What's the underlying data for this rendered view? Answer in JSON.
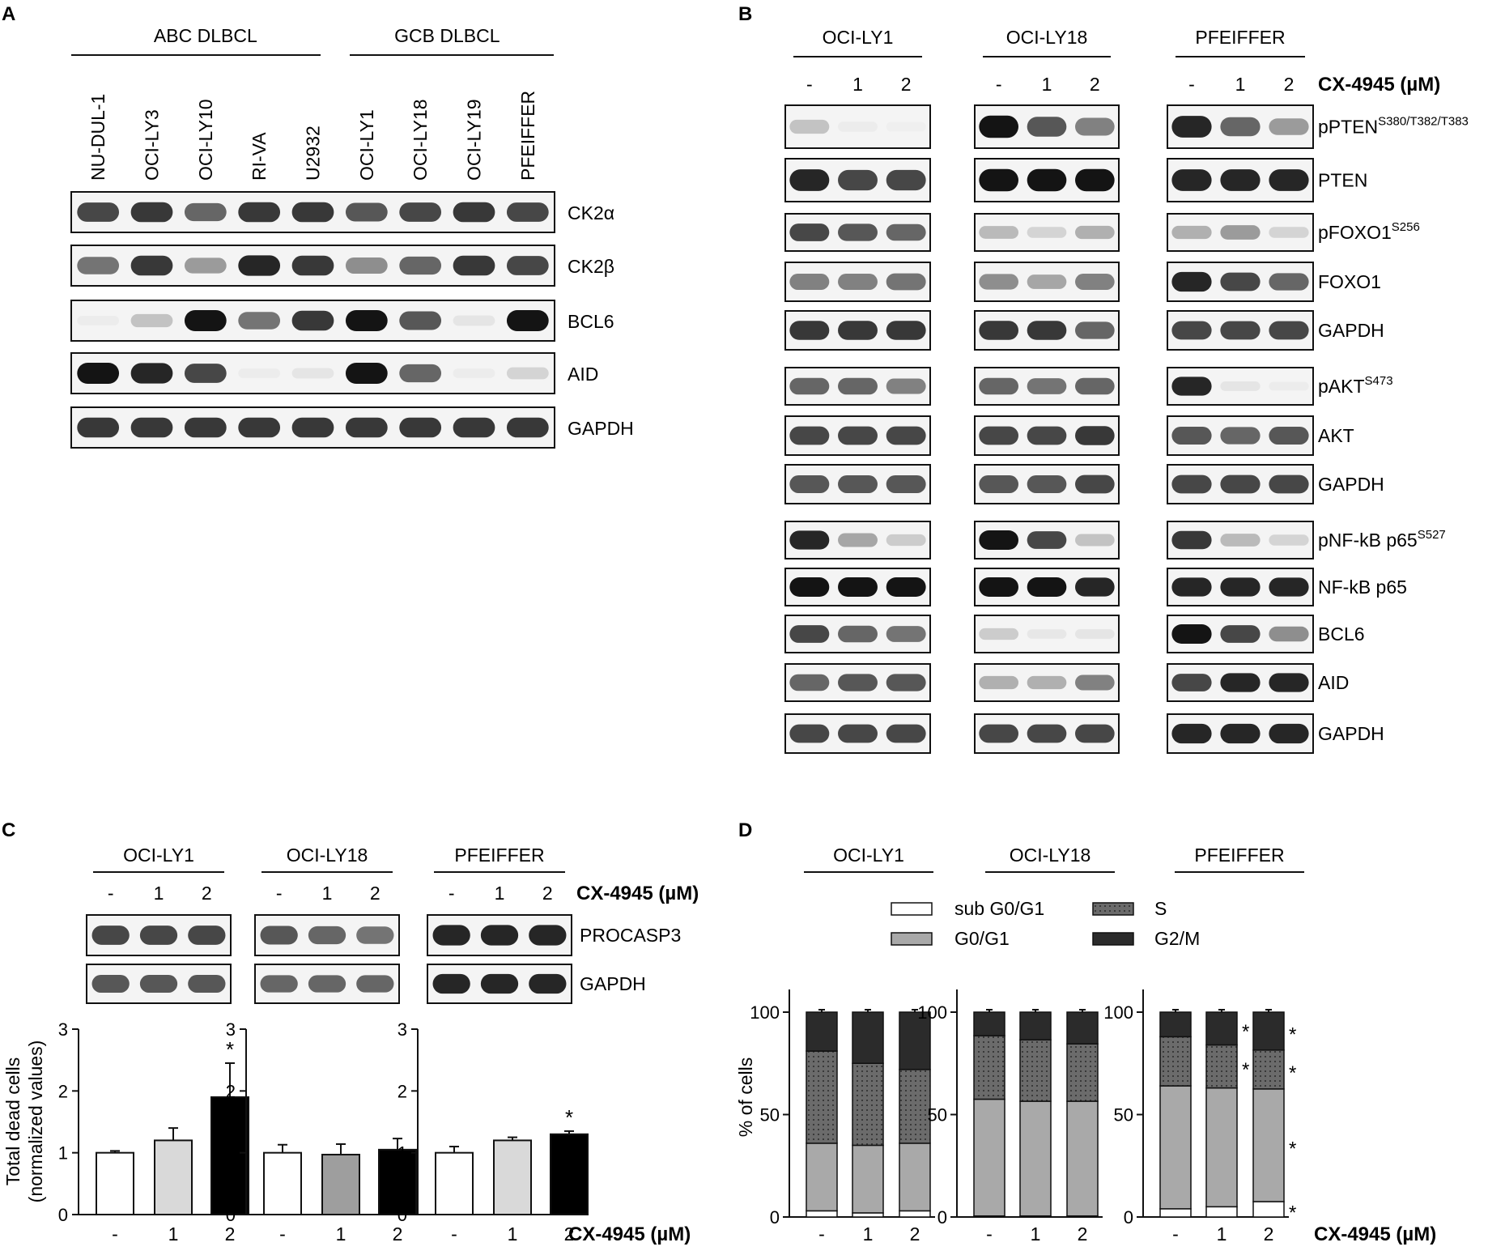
{
  "figure": {
    "panels": {
      "A": {
        "letter": "A",
        "groups": [
          {
            "label": "ABC DLBCL",
            "span": [
              0,
              4
            ]
          },
          {
            "label": "GCB DLBCL",
            "span": [
              5,
              8
            ]
          }
        ],
        "cell_lines": [
          "NU-DUL-1",
          "OCI-LY3",
          "OCI-LY10",
          "RI-VA",
          "U2932",
          "OCI-LY1",
          "OCI-LY18",
          "OCI-LY19",
          "PFEIFFER"
        ],
        "blots": [
          {
            "label": "CK2α",
            "intensity": [
              0.85,
              0.9,
              0.75,
              0.9,
              0.9,
              0.8,
              0.85,
              0.9,
              0.85
            ]
          },
          {
            "label": "CK2β",
            "intensity": [
              0.7,
              0.9,
              0.55,
              0.95,
              0.9,
              0.6,
              0.75,
              0.9,
              0.85
            ]
          },
          {
            "label": "BCL6",
            "intensity": [
              0.05,
              0.35,
              1.0,
              0.7,
              0.9,
              1.0,
              0.8,
              0.12,
              1.0
            ]
          },
          {
            "label": "AID",
            "intensity": [
              1.0,
              0.95,
              0.85,
              0.05,
              0.12,
              1.0,
              0.75,
              0.05,
              0.25
            ]
          },
          {
            "label": "GAPDH",
            "intensity": [
              0.9,
              0.9,
              0.9,
              0.9,
              0.9,
              0.9,
              0.9,
              0.9,
              0.9
            ]
          }
        ]
      },
      "B": {
        "letter": "B",
        "cell_lines": [
          "OCI-LY1",
          "OCI-LY18",
          "PFEIFFER"
        ],
        "doses": [
          "-",
          "1",
          "2"
        ],
        "treatment_label": "CX-4945 (µM)",
        "blots": [
          {
            "label": "pPTEN",
            "sup": "S380/T382/T383",
            "intensity": [
              [
                0.35,
                0.05,
                0.02
              ],
              [
                1.0,
                0.8,
                0.65
              ],
              [
                0.95,
                0.75,
                0.55
              ]
            ]
          },
          {
            "label": "PTEN",
            "sup": "",
            "intensity": [
              [
                0.95,
                0.85,
                0.85
              ],
              [
                1.0,
                1.0,
                1.0
              ],
              [
                0.95,
                0.95,
                0.95
              ]
            ]
          },
          {
            "label": "pFOXO1",
            "sup": "S256",
            "intensity": [
              [
                0.85,
                0.8,
                0.75
              ],
              [
                0.4,
                0.25,
                0.45
              ],
              [
                0.45,
                0.55,
                0.25
              ]
            ]
          },
          {
            "label": "FOXO1",
            "sup": "",
            "intensity": [
              [
                0.65,
                0.65,
                0.7
              ],
              [
                0.6,
                0.5,
                0.65
              ],
              [
                0.95,
                0.85,
                0.75
              ]
            ]
          },
          {
            "label": "GAPDH",
            "sup": "",
            "intensity": [
              [
                0.9,
                0.9,
                0.9
              ],
              [
                0.9,
                0.9,
                0.75
              ],
              [
                0.85,
                0.85,
                0.85
              ]
            ]
          },
          {
            "label": "pAKT",
            "sup": "S473",
            "intensity": [
              [
                0.75,
                0.75,
                0.65
              ],
              [
                0.75,
                0.7,
                0.75
              ],
              [
                0.95,
                0.12,
                0.05
              ]
            ]
          },
          {
            "label": "AKT",
            "sup": "",
            "intensity": [
              [
                0.85,
                0.85,
                0.85
              ],
              [
                0.85,
                0.85,
                0.9
              ],
              [
                0.8,
                0.75,
                0.8
              ]
            ]
          },
          {
            "label": "GAPDH",
            "sup": "",
            "intensity": [
              [
                0.8,
                0.8,
                0.8
              ],
              [
                0.8,
                0.8,
                0.85
              ],
              [
                0.85,
                0.85,
                0.85
              ]
            ]
          },
          {
            "label": "pNF-kB p65",
            "sup": "S527",
            "intensity": [
              [
                0.95,
                0.5,
                0.3
              ],
              [
                1.0,
                0.85,
                0.35
              ],
              [
                0.9,
                0.4,
                0.25
              ]
            ]
          },
          {
            "label": "NF-kB p65",
            "sup": "",
            "intensity": [
              [
                1.0,
                1.0,
                1.0
              ],
              [
                1.0,
                1.0,
                0.95
              ],
              [
                0.95,
                0.95,
                0.95
              ]
            ]
          },
          {
            "label": "BCL6",
            "sup": "",
            "intensity": [
              [
                0.85,
                0.75,
                0.7
              ],
              [
                0.3,
                0.1,
                0.12
              ],
              [
                1.0,
                0.85,
                0.6
              ]
            ]
          },
          {
            "label": "AID",
            "sup": "",
            "intensity": [
              [
                0.75,
                0.8,
                0.8
              ],
              [
                0.45,
                0.45,
                0.65
              ],
              [
                0.85,
                0.95,
                0.95
              ]
            ]
          },
          {
            "label": "GAPDH",
            "sup": "",
            "intensity": [
              [
                0.85,
                0.85,
                0.85
              ],
              [
                0.85,
                0.85,
                0.85
              ],
              [
                0.95,
                0.95,
                0.95
              ]
            ]
          }
        ]
      },
      "C": {
        "letter": "C",
        "cell_lines": [
          "OCI-LY1",
          "OCI-LY18",
          "PFEIFFER"
        ],
        "doses": [
          "-",
          "1",
          "2"
        ],
        "treatment_label": "CX-4945 (µM)",
        "blots": [
          {
            "label": "PROCASP3",
            "intensity": [
              [
                0.85,
                0.85,
                0.85
              ],
              [
                0.8,
                0.75,
                0.7
              ],
              [
                0.95,
                0.95,
                0.95
              ]
            ]
          },
          {
            "label": "GAPDH",
            "intensity": [
              [
                0.8,
                0.8,
                0.8
              ],
              [
                0.75,
                0.75,
                0.75
              ],
              [
                0.95,
                0.95,
                0.95
              ]
            ]
          }
        ],
        "chart_data": {
          "type": "bar",
          "ylabel": "Total dead cells (normalized values)",
          "ylabel_lines": [
            "Total dead cells",
            "(normalized values)"
          ],
          "xlabel": "CX-4945 (µM)",
          "categories": [
            "-",
            "1",
            "2"
          ],
          "ylim": [
            0,
            3
          ],
          "yticks": [
            "0",
            "1",
            "2",
            "3"
          ],
          "bar_colors": [
            "#ffffff",
            "#d9d9d9",
            "#000000"
          ],
          "series": [
            {
              "name": "OCI-LY1",
              "values": [
                1.0,
                1.2,
                1.9
              ],
              "errors": [
                0.03,
                0.2,
                0.55
              ],
              "significant": [
                false,
                false,
                true
              ],
              "bar_colors": [
                "#ffffff",
                "#d9d9d9",
                "#000000"
              ]
            },
            {
              "name": "OCI-LY18",
              "values": [
                1.0,
                0.97,
                1.05
              ],
              "errors": [
                0.13,
                0.17,
                0.18
              ],
              "significant": [
                false,
                false,
                false
              ],
              "bar_colors": [
                "#ffffff",
                "#9e9e9e",
                "#000000"
              ]
            },
            {
              "name": "PFEIFFER",
              "values": [
                1.0,
                1.2,
                1.3
              ],
              "errors": [
                0.1,
                0.05,
                0.05
              ],
              "significant": [
                false,
                false,
                true
              ],
              "bar_colors": [
                "#ffffff",
                "#d9d9d9",
                "#000000"
              ]
            }
          ],
          "significance_mark": "*"
        }
      },
      "D": {
        "letter": "D",
        "chart_data": {
          "type": "bar",
          "stacked": true,
          "ylabel": "% of cells",
          "xlabel": "CX-4945 (µM)",
          "categories": [
            "-",
            "1",
            "2"
          ],
          "ylim": [
            0,
            100
          ],
          "yticks": [
            "0",
            "50",
            "100"
          ],
          "legend": [
            {
              "name": "sub G0/G1",
              "color": "#ffffff"
            },
            {
              "name": "S",
              "color": "#6b6b6b",
              "dotted": true
            },
            {
              "name": "G0/G1",
              "color": "#a9a9a9"
            },
            {
              "name": "G2/M",
              "color": "#2b2b2b"
            }
          ],
          "legend_order": [
            "sub G0/G1",
            "S",
            "G0/G1",
            "G2/M"
          ],
          "panels": [
            {
              "title": "OCI-LY1",
              "sub_g0g1": [
                3,
                2,
                3
              ],
              "g0g1": [
                33,
                33,
                33
              ],
              "s": [
                45,
                40,
                36
              ],
              "g2m": [
                19,
                25,
                28
              ],
              "stars": [
                [],
                [],
                []
              ]
            },
            {
              "title": "OCI-LY18",
              "sub_g0g1": [
                0.5,
                0.5,
                0.5
              ],
              "g0g1": [
                57,
                56,
                56
              ],
              "s": [
                31,
                30,
                28
              ],
              "g2m": [
                11.5,
                13.5,
                15.5
              ],
              "stars": [
                [],
                [],
                []
              ]
            },
            {
              "title": "PFEIFFER",
              "sub_g0g1": [
                4,
                5,
                7.5
              ],
              "g0g1": [
                60,
                58,
                55
              ],
              "s": [
                24,
                21,
                19
              ],
              "g2m": [
                12,
                16,
                18.5
              ],
              "stars": [
                [],
                [
                  "g2m",
                  "s"
                ],
                [
                  "g2m",
                  "s",
                  "g0g1",
                  "sub_g0g1"
                ]
              ]
            }
          ],
          "significance_mark": "*"
        }
      }
    }
  }
}
